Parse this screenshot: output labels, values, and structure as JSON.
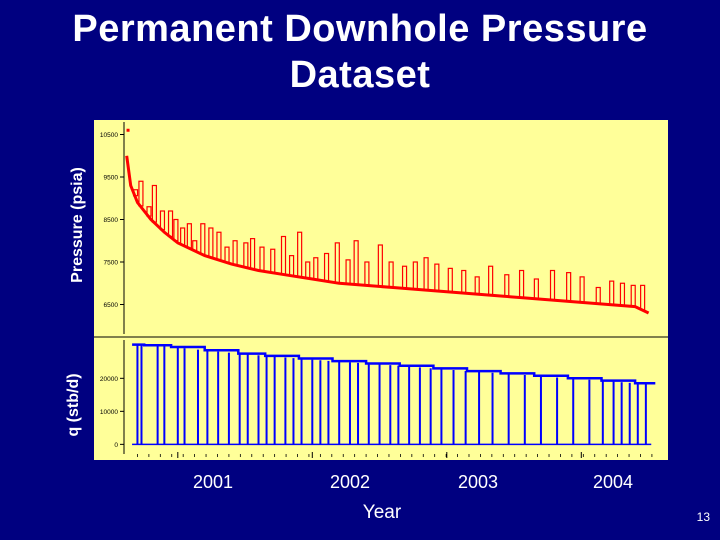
{
  "title_lines": [
    "Permanent Downhole Pressure",
    "Dataset"
  ],
  "slide_number": "13",
  "chart_data": [
    {
      "type": "line",
      "ylabel": "Pressure (psia)",
      "xlabel": "Year",
      "x_ticks": [
        "2001",
        "2002",
        "2003",
        "2004"
      ],
      "xlim": [
        2000.6,
        2004.6
      ],
      "ylim": [
        5900,
        10700
      ],
      "y_ticks": [
        6500,
        7500,
        8500,
        9500,
        10500
      ],
      "grid": false,
      "background": "#ffff99",
      "color": "#ff0000",
      "series": [
        {
          "values_description_free": true,
          "x": [
            2000.62,
            2000.65,
            2000.7,
            2000.8,
            2000.9,
            2001.0,
            2001.2,
            2001.4,
            2001.6,
            2001.8,
            2002.0,
            2002.2,
            2002.4,
            2002.6,
            2002.8,
            2003.0,
            2003.2,
            2003.4,
            2003.6,
            2003.8,
            2004.0,
            2004.2,
            2004.4,
            2004.5
          ],
          "y": [
            10000,
            9300,
            8900,
            8500,
            8200,
            7950,
            7650,
            7450,
            7300,
            7200,
            7100,
            7000,
            6950,
            6900,
            6850,
            6800,
            6750,
            6700,
            6650,
            6600,
            6550,
            6500,
            6450,
            6300
          ]
        }
      ],
      "spikes_x": [
        2000.68,
        2000.72,
        2000.78,
        2000.82,
        2000.88,
        2000.94,
        2000.98,
        2001.03,
        2001.08,
        2001.12,
        2001.18,
        2001.24,
        2001.3,
        2001.36,
        2001.42,
        2001.5,
        2001.55,
        2001.62,
        2001.7,
        2001.78,
        2001.84,
        2001.9,
        2001.96,
        2002.02,
        2002.1,
        2002.18,
        2002.26,
        2002.32,
        2002.4,
        2002.5,
        2002.58,
        2002.68,
        2002.76,
        2002.84,
        2002.92,
        2003.02,
        2003.12,
        2003.22,
        2003.32,
        2003.44,
        2003.55,
        2003.66,
        2003.78,
        2003.9,
        2004.0,
        2004.12,
        2004.22,
        2004.3,
        2004.38,
        2004.45
      ],
      "spikes_y": [
        9200,
        9400,
        8800,
        9300,
        8700,
        8700,
        8500,
        8300,
        8400,
        8000,
        8400,
        8300,
        8200,
        7850,
        8000,
        7950,
        8050,
        7850,
        7800,
        8100,
        7650,
        8200,
        7500,
        7600,
        7700,
        7950,
        7550,
        8000,
        7500,
        7900,
        7500,
        7400,
        7500,
        7600,
        7450,
        7350,
        7300,
        7150,
        7400,
        7200,
        7300,
        7100,
        7300,
        7250,
        7150,
        6900,
        7050,
        7000,
        6950,
        6950
      ]
    },
    {
      "type": "line",
      "ylabel": "q (stb/d)",
      "xlim": [
        2000.6,
        2004.6
      ],
      "ylim": [
        -500,
        31000
      ],
      "y_ticks": [
        0,
        10000,
        20000
      ],
      "background": "#ffff99",
      "color": "#0000ff",
      "series": [
        {
          "x": [
            2000.66,
            2000.75,
            2000.95,
            2001.2,
            2001.45,
            2001.65,
            2001.9,
            2002.15,
            2002.4,
            2002.65,
            2002.9,
            2003.15,
            2003.4,
            2003.65,
            2003.9,
            2004.15,
            2004.4,
            2004.55
          ],
          "y": [
            30200,
            30000,
            29500,
            28500,
            27500,
            26800,
            26000,
            25200,
            24500,
            23800,
            23000,
            22200,
            21500,
            20800,
            20000,
            19300,
            18500,
            18500
          ]
        }
      ],
      "drops_x": [
        2000.7,
        2000.73,
        2000.85,
        2000.9,
        2001.0,
        2001.05,
        2001.15,
        2001.22,
        2001.3,
        2001.38,
        2001.46,
        2001.52,
        2001.6,
        2001.66,
        2001.72,
        2001.8,
        2001.86,
        2001.92,
        2002.0,
        2002.06,
        2002.12,
        2002.2,
        2002.28,
        2002.34,
        2002.42,
        2002.5,
        2002.58,
        2002.64,
        2002.72,
        2002.8,
        2002.88,
        2002.96,
        2003.05,
        2003.14,
        2003.24,
        2003.34,
        2003.46,
        2003.58,
        2003.7,
        2003.82,
        2003.94,
        2004.06,
        2004.16,
        2004.24,
        2004.3,
        2004.36,
        2004.42,
        2004.48
      ]
    }
  ]
}
